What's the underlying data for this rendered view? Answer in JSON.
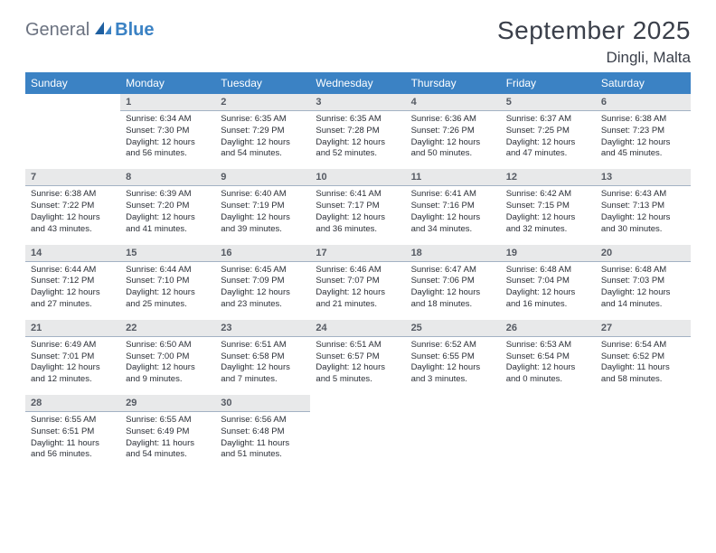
{
  "logo": {
    "part1": "General",
    "part2": "Blue"
  },
  "title": "September 2025",
  "location": "Dingli, Malta",
  "header_bg": "#3b82c4",
  "daynum_bg": "#e8e9ea",
  "daynum_border": "#a3b2c4",
  "daynames": [
    "Sunday",
    "Monday",
    "Tuesday",
    "Wednesday",
    "Thursday",
    "Friday",
    "Saturday"
  ],
  "weeks": [
    [
      null,
      {
        "n": "1",
        "sr": "6:34 AM",
        "ss": "7:30 PM",
        "dl": "12 hours and 56 minutes."
      },
      {
        "n": "2",
        "sr": "6:35 AM",
        "ss": "7:29 PM",
        "dl": "12 hours and 54 minutes."
      },
      {
        "n": "3",
        "sr": "6:35 AM",
        "ss": "7:28 PM",
        "dl": "12 hours and 52 minutes."
      },
      {
        "n": "4",
        "sr": "6:36 AM",
        "ss": "7:26 PM",
        "dl": "12 hours and 50 minutes."
      },
      {
        "n": "5",
        "sr": "6:37 AM",
        "ss": "7:25 PM",
        "dl": "12 hours and 47 minutes."
      },
      {
        "n": "6",
        "sr": "6:38 AM",
        "ss": "7:23 PM",
        "dl": "12 hours and 45 minutes."
      }
    ],
    [
      {
        "n": "7",
        "sr": "6:38 AM",
        "ss": "7:22 PM",
        "dl": "12 hours and 43 minutes."
      },
      {
        "n": "8",
        "sr": "6:39 AM",
        "ss": "7:20 PM",
        "dl": "12 hours and 41 minutes."
      },
      {
        "n": "9",
        "sr": "6:40 AM",
        "ss": "7:19 PM",
        "dl": "12 hours and 39 minutes."
      },
      {
        "n": "10",
        "sr": "6:41 AM",
        "ss": "7:17 PM",
        "dl": "12 hours and 36 minutes."
      },
      {
        "n": "11",
        "sr": "6:41 AM",
        "ss": "7:16 PM",
        "dl": "12 hours and 34 minutes."
      },
      {
        "n": "12",
        "sr": "6:42 AM",
        "ss": "7:15 PM",
        "dl": "12 hours and 32 minutes."
      },
      {
        "n": "13",
        "sr": "6:43 AM",
        "ss": "7:13 PM",
        "dl": "12 hours and 30 minutes."
      }
    ],
    [
      {
        "n": "14",
        "sr": "6:44 AM",
        "ss": "7:12 PM",
        "dl": "12 hours and 27 minutes."
      },
      {
        "n": "15",
        "sr": "6:44 AM",
        "ss": "7:10 PM",
        "dl": "12 hours and 25 minutes."
      },
      {
        "n": "16",
        "sr": "6:45 AM",
        "ss": "7:09 PM",
        "dl": "12 hours and 23 minutes."
      },
      {
        "n": "17",
        "sr": "6:46 AM",
        "ss": "7:07 PM",
        "dl": "12 hours and 21 minutes."
      },
      {
        "n": "18",
        "sr": "6:47 AM",
        "ss": "7:06 PM",
        "dl": "12 hours and 18 minutes."
      },
      {
        "n": "19",
        "sr": "6:48 AM",
        "ss": "7:04 PM",
        "dl": "12 hours and 16 minutes."
      },
      {
        "n": "20",
        "sr": "6:48 AM",
        "ss": "7:03 PM",
        "dl": "12 hours and 14 minutes."
      }
    ],
    [
      {
        "n": "21",
        "sr": "6:49 AM",
        "ss": "7:01 PM",
        "dl": "12 hours and 12 minutes."
      },
      {
        "n": "22",
        "sr": "6:50 AM",
        "ss": "7:00 PM",
        "dl": "12 hours and 9 minutes."
      },
      {
        "n": "23",
        "sr": "6:51 AM",
        "ss": "6:58 PM",
        "dl": "12 hours and 7 minutes."
      },
      {
        "n": "24",
        "sr": "6:51 AM",
        "ss": "6:57 PM",
        "dl": "12 hours and 5 minutes."
      },
      {
        "n": "25",
        "sr": "6:52 AM",
        "ss": "6:55 PM",
        "dl": "12 hours and 3 minutes."
      },
      {
        "n": "26",
        "sr": "6:53 AM",
        "ss": "6:54 PM",
        "dl": "12 hours and 0 minutes."
      },
      {
        "n": "27",
        "sr": "6:54 AM",
        "ss": "6:52 PM",
        "dl": "11 hours and 58 minutes."
      }
    ],
    [
      {
        "n": "28",
        "sr": "6:55 AM",
        "ss": "6:51 PM",
        "dl": "11 hours and 56 minutes."
      },
      {
        "n": "29",
        "sr": "6:55 AM",
        "ss": "6:49 PM",
        "dl": "11 hours and 54 minutes."
      },
      {
        "n": "30",
        "sr": "6:56 AM",
        "ss": "6:48 PM",
        "dl": "11 hours and 51 minutes."
      },
      null,
      null,
      null,
      null
    ]
  ],
  "labels": {
    "sunrise": "Sunrise:",
    "sunset": "Sunset:",
    "daylight": "Daylight:"
  }
}
